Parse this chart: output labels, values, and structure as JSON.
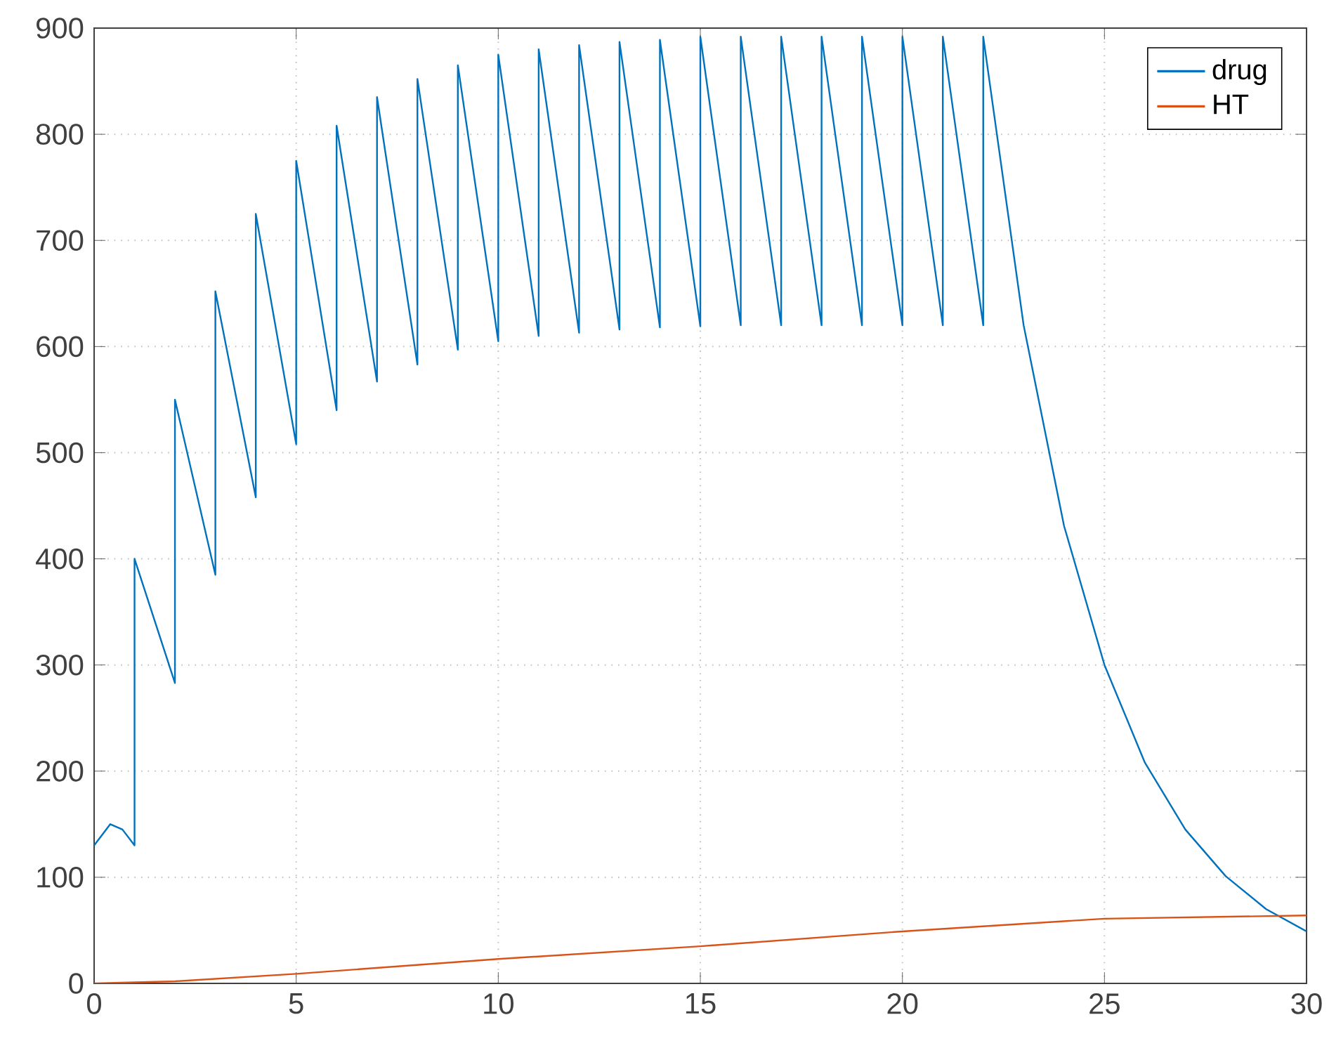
{
  "chart_data": {
    "type": "line",
    "xlim": [
      0,
      30
    ],
    "ylim": [
      0,
      900
    ],
    "xticks": [
      0,
      5,
      10,
      15,
      20,
      25,
      30
    ],
    "yticks": [
      0,
      100,
      200,
      300,
      400,
      500,
      600,
      700,
      800,
      900
    ],
    "grid": true,
    "legend": "top right",
    "series": [
      {
        "name": "drug",
        "color": "#0072bd",
        "x": [
          0,
          0.4,
          0.7,
          1,
          1,
          2,
          2,
          3,
          3,
          4,
          4,
          5,
          5,
          6,
          6,
          7,
          7,
          8,
          8,
          9,
          9,
          10,
          10,
          11,
          11,
          12,
          12,
          13,
          13,
          14,
          14,
          15,
          15,
          16,
          16,
          17,
          17,
          18,
          18,
          19,
          19,
          20,
          20,
          21,
          21,
          22,
          22,
          23,
          24,
          25,
          26,
          27,
          28,
          29,
          30
        ],
        "values": [
          130,
          150,
          145,
          130,
          400,
          283,
          550,
          385,
          652,
          458,
          725,
          508,
          775,
          540,
          808,
          567,
          835,
          583,
          852,
          597,
          865,
          605,
          875,
          610,
          880,
          613,
          884,
          616,
          887,
          618,
          889,
          619,
          892,
          620,
          892,
          620,
          892,
          620,
          892,
          620,
          892,
          620,
          892,
          620,
          892,
          620,
          892,
          620,
          431,
          300,
          208,
          145,
          101,
          70,
          49
        ]
      },
      {
        "name": "HT",
        "color": "#d95319",
        "x": [
          0,
          2,
          5,
          10,
          15,
          20,
          25,
          30
        ],
        "values": [
          0,
          2,
          9,
          23,
          35,
          49,
          61,
          64
        ]
      }
    ]
  }
}
